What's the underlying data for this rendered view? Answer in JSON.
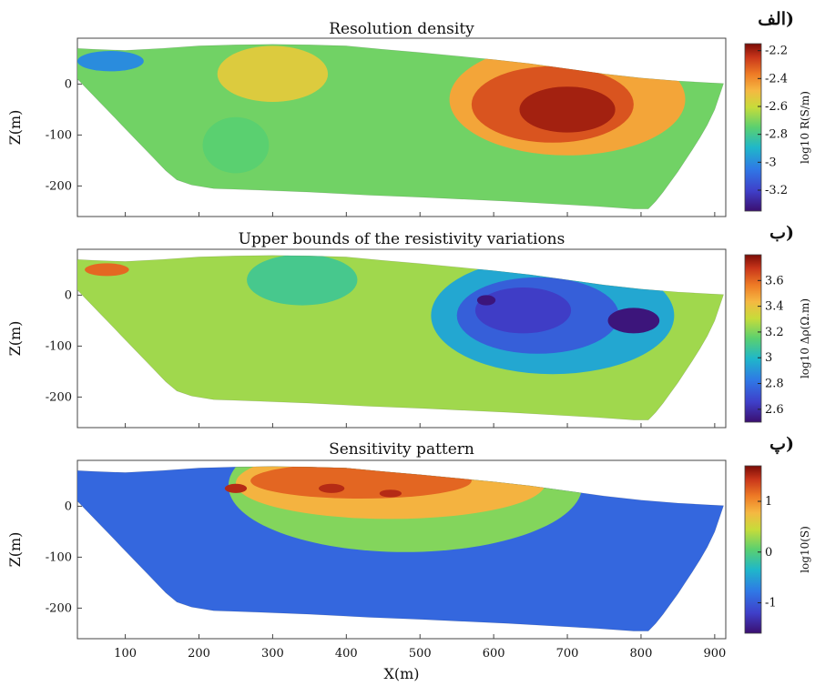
{
  "chart_data": [
    {
      "type": "heatmap",
      "panel_tag": "الف)",
      "title": "Resolution density",
      "ylabel": "Z(m)",
      "xlim": [
        35,
        915
      ],
      "ylim": [
        -260,
        90
      ],
      "x_ticks": [
        100,
        200,
        300,
        400,
        500,
        600,
        700,
        800,
        900
      ],
      "y_ticks": [
        0,
        -100,
        -200
      ],
      "y_tick_labels": [
        "0",
        "-100",
        "-200"
      ],
      "colorbar": {
        "label": "log10 R(S/m)",
        "range": [
          -3.35,
          -2.15
        ],
        "ticks": [
          -2.2,
          -2.4,
          -2.6,
          -2.8,
          -3,
          -3.2
        ],
        "tick_labels": [
          "-2.2",
          "-2.4",
          "-2.6",
          "-2.8",
          "-3",
          "-3.2"
        ]
      },
      "background_value": -2.72,
      "value_levels": [
        {
          "x_center": 700,
          "y_center": -30,
          "x_spread": 320,
          "y_spread": 220,
          "value": -2.45
        },
        {
          "x_center": 680,
          "y_center": -40,
          "x_spread": 220,
          "y_spread": 150,
          "value": -2.3
        },
        {
          "x_center": 700,
          "y_center": -50,
          "x_spread": 130,
          "y_spread": 90,
          "value": -2.2
        },
        {
          "x_center": 300,
          "y_center": 20,
          "x_spread": 150,
          "y_spread": 110,
          "value": -2.55
        }
      ],
      "features": [
        {
          "x_center": 80,
          "y_center": 45,
          "x_spread": 90,
          "y_spread": 40,
          "value": -3.0
        },
        {
          "x_center": 250,
          "y_center": -120,
          "x_spread": 90,
          "y_spread": 110,
          "value": -2.75
        }
      ]
    },
    {
      "type": "heatmap",
      "panel_tag": "ب)",
      "title": "Upper bounds of the resistivity variations",
      "ylabel": "Z(m)",
      "xlim": [
        35,
        915
      ],
      "ylim": [
        -260,
        90
      ],
      "x_ticks": [
        100,
        200,
        300,
        400,
        500,
        600,
        700,
        800,
        900
      ],
      "y_ticks": [
        0,
        -100,
        -200
      ],
      "y_tick_labels": [
        "0",
        "-100",
        "-200"
      ],
      "colorbar": {
        "label": "log10 Δρ(Ω.m)",
        "range": [
          2.5,
          3.8
        ],
        "ticks": [
          3.6,
          3.4,
          3.2,
          3,
          2.8,
          2.6
        ],
        "tick_labels": [
          "3.6",
          "3.4",
          "3.2",
          "3",
          "2.8",
          "2.6"
        ]
      },
      "background_value": 3.25,
      "value_levels": [
        {
          "x_center": 680,
          "y_center": -40,
          "x_spread": 330,
          "y_spread": 230,
          "value": 2.95
        },
        {
          "x_center": 660,
          "y_center": -40,
          "x_spread": 220,
          "y_spread": 150,
          "value": 2.75
        },
        {
          "x_center": 640,
          "y_center": -30,
          "x_spread": 130,
          "y_spread": 90,
          "value": 2.65
        },
        {
          "x_center": 340,
          "y_center": 30,
          "x_spread": 150,
          "y_spread": 100,
          "value": 3.1
        }
      ],
      "features": [
        {
          "x_center": 75,
          "y_center": 50,
          "x_spread": 60,
          "y_spread": 25,
          "value": 3.6
        },
        {
          "x_center": 790,
          "y_center": -50,
          "x_spread": 70,
          "y_spread": 50,
          "value": 2.52
        },
        {
          "x_center": 590,
          "y_center": -10,
          "x_spread": 25,
          "y_spread": 20,
          "value": 2.52
        }
      ]
    },
    {
      "type": "heatmap",
      "panel_tag": "پ)",
      "title": "Sensitivity pattern",
      "xlabel": "X(m)",
      "ylabel": "Z(m)",
      "xlim": [
        35,
        915
      ],
      "ylim": [
        -260,
        90
      ],
      "x_ticks": [
        100,
        200,
        300,
        400,
        500,
        600,
        700,
        800,
        900
      ],
      "x_tick_labels": [
        "100",
        "200",
        "300",
        "400",
        "500",
        "600",
        "700",
        "800",
        "900"
      ],
      "y_ticks": [
        0,
        -100,
        -200
      ],
      "y_tick_labels": [
        "0",
        "-100",
        "-200"
      ],
      "colorbar": {
        "label": "log10(S)",
        "range": [
          -1.6,
          1.7
        ],
        "ticks": [
          1,
          0,
          -1
        ],
        "tick_labels": [
          "1",
          "0",
          "-1"
        ]
      },
      "background_value": -0.9,
      "value_levels": [
        {
          "x_center": 480,
          "y_center": 40,
          "x_spread": 480,
          "y_spread": 260,
          "value": 0.2
        },
        {
          "x_center": 460,
          "y_center": 45,
          "x_spread": 420,
          "y_spread": 140,
          "value": 0.8
        },
        {
          "x_center": 420,
          "y_center": 50,
          "x_spread": 300,
          "y_spread": 70,
          "value": 1.2
        }
      ],
      "features": [
        {
          "x_center": 250,
          "y_center": 35,
          "x_spread": 30,
          "y_spread": 18,
          "value": 1.5
        },
        {
          "x_center": 380,
          "y_center": 35,
          "x_spread": 35,
          "y_spread": 18,
          "value": 1.5
        },
        {
          "x_center": 460,
          "y_center": 25,
          "x_spread": 30,
          "y_spread": 15,
          "value": 1.5
        }
      ]
    }
  ],
  "topography": {
    "x": [
      35,
      60,
      100,
      150,
      200,
      250,
      300,
      350,
      400,
      450,
      500,
      550,
      600,
      650,
      700,
      750,
      800,
      850,
      900,
      912
    ],
    "z": [
      70,
      68,
      66,
      70,
      75,
      77,
      78,
      77,
      75,
      68,
      62,
      55,
      48,
      40,
      30,
      20,
      12,
      6,
      2,
      1
    ]
  },
  "section_base": {
    "x": [
      35,
      45,
      55,
      65,
      75,
      85,
      95,
      105,
      115,
      125,
      135,
      145,
      155,
      170,
      190,
      220,
      280,
      350,
      430,
      500,
      560,
      620,
      680,
      740,
      790,
      810,
      820,
      830,
      840,
      850,
      860,
      870,
      880,
      890,
      900,
      912
    ],
    "z": [
      10,
      -5,
      -20,
      -35,
      -50,
      -65,
      -80,
      -95,
      -110,
      -125,
      -140,
      -155,
      -170,
      -188,
      -198,
      -205,
      -208,
      -212,
      -218,
      -222,
      -226,
      -230,
      -235,
      -240,
      -245,
      -245,
      -230,
      -212,
      -192,
      -172,
      -150,
      -128,
      -105,
      -80,
      -50,
      1
    ]
  }
}
